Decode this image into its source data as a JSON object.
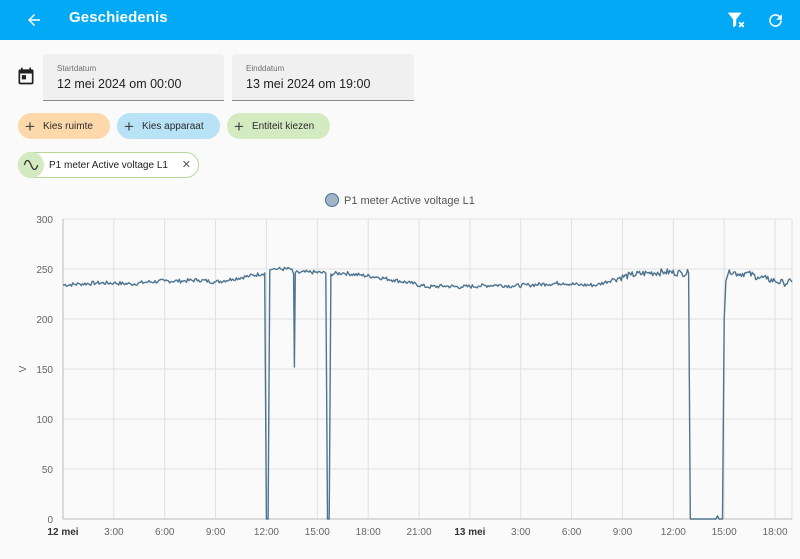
{
  "appbar": {
    "title": "Geschiedenis",
    "back_icon": "arrow-left-icon",
    "filter_icon": "filter-remove-icon",
    "refresh_icon": "refresh-icon",
    "color": "#03a9f4"
  },
  "dates": {
    "start": {
      "label": "Startdatum",
      "value": "12 mei 2024 om 00:00"
    },
    "end": {
      "label": "Einddatum",
      "value": "13 mei 2024 om 19:00"
    }
  },
  "targets": {
    "area": {
      "label": "Kies ruimte",
      "color": "#fdd8ab"
    },
    "device": {
      "label": "Kies apparaat",
      "color": "#b8e2f6"
    },
    "entity": {
      "label": "Entiteit kiezen",
      "color": "#d4eac1"
    }
  },
  "selected_entity": {
    "name": "P1 meter Active voltage L1",
    "icon": "sine-wave-icon"
  },
  "chart_data": {
    "type": "line",
    "title": "",
    "legend": "P1 meter Active voltage L1",
    "legend_position": "top",
    "ylabel": "V",
    "ylim": [
      0,
      300
    ],
    "yticks": [
      "0",
      "50",
      "100",
      "150",
      "200",
      "250",
      "300"
    ],
    "xlim_hours": [
      0,
      43
    ],
    "xticks": [
      {
        "h": 0,
        "label": "12 mei",
        "bold": true
      },
      {
        "h": 3,
        "label": "3:00"
      },
      {
        "h": 6,
        "label": "6:00"
      },
      {
        "h": 9,
        "label": "9:00"
      },
      {
        "h": 12,
        "label": "12:00"
      },
      {
        "h": 15,
        "label": "15:00"
      },
      {
        "h": 18,
        "label": "18:00"
      },
      {
        "h": 21,
        "label": "21:00"
      },
      {
        "h": 24,
        "label": "13 mei",
        "bold": true
      },
      {
        "h": 27,
        "label": "3:00"
      },
      {
        "h": 30,
        "label": "6:00"
      },
      {
        "h": 33,
        "label": "9:00"
      },
      {
        "h": 36,
        "label": "12:00"
      },
      {
        "h": 39,
        "label": "15:00"
      },
      {
        "h": 42,
        "label": "18:00"
      }
    ],
    "grid": true,
    "series_color": "#4e7490",
    "series": [
      {
        "name": "P1 meter Active voltage L1",
        "points": [
          [
            0,
            234
          ],
          [
            1,
            235
          ],
          [
            2,
            236
          ],
          [
            3,
            236
          ],
          [
            4,
            235
          ],
          [
            5,
            237
          ],
          [
            6,
            238
          ],
          [
            7,
            238
          ],
          [
            8,
            239
          ],
          [
            9,
            237
          ],
          [
            10,
            240
          ],
          [
            11,
            243
          ],
          [
            11.9,
            246
          ],
          [
            12,
            0
          ],
          [
            12.1,
            0
          ],
          [
            12.2,
            249
          ],
          [
            12.4,
            250
          ],
          [
            13.5,
            250
          ],
          [
            13.6,
            245
          ],
          [
            13.65,
            152
          ],
          [
            13.7,
            246
          ],
          [
            14.5,
            247
          ],
          [
            15.5,
            246
          ],
          [
            15.6,
            0
          ],
          [
            15.7,
            0
          ],
          [
            15.8,
            245
          ],
          [
            16.5,
            246
          ],
          [
            17.5,
            244
          ],
          [
            18.5,
            242
          ],
          [
            19.5,
            239
          ],
          [
            20.5,
            236
          ],
          [
            21.5,
            232
          ],
          [
            22.5,
            233
          ],
          [
            23.5,
            232
          ],
          [
            24.5,
            233
          ],
          [
            25.5,
            234
          ],
          [
            26.5,
            233
          ],
          [
            27.5,
            234
          ],
          [
            28.5,
            235
          ],
          [
            29.5,
            236
          ],
          [
            30.5,
            234
          ],
          [
            31.5,
            234
          ],
          [
            32.5,
            240
          ],
          [
            33.5,
            244
          ],
          [
            34.5,
            246
          ],
          [
            35.5,
            247
          ],
          [
            36.5,
            246
          ],
          [
            36.9,
            246
          ],
          [
            37,
            0
          ],
          [
            37.5,
            0
          ],
          [
            38.5,
            0
          ],
          [
            38.6,
            3
          ],
          [
            38.7,
            0
          ],
          [
            38.9,
            0
          ],
          [
            39,
            200
          ],
          [
            39.1,
            238
          ],
          [
            39.3,
            249
          ],
          [
            39.8,
            245
          ],
          [
            40.3,
            246
          ],
          [
            41,
            242
          ],
          [
            41.5,
            240
          ],
          [
            42,
            238
          ],
          [
            42.5,
            236
          ],
          [
            43,
            237
          ]
        ]
      }
    ]
  }
}
